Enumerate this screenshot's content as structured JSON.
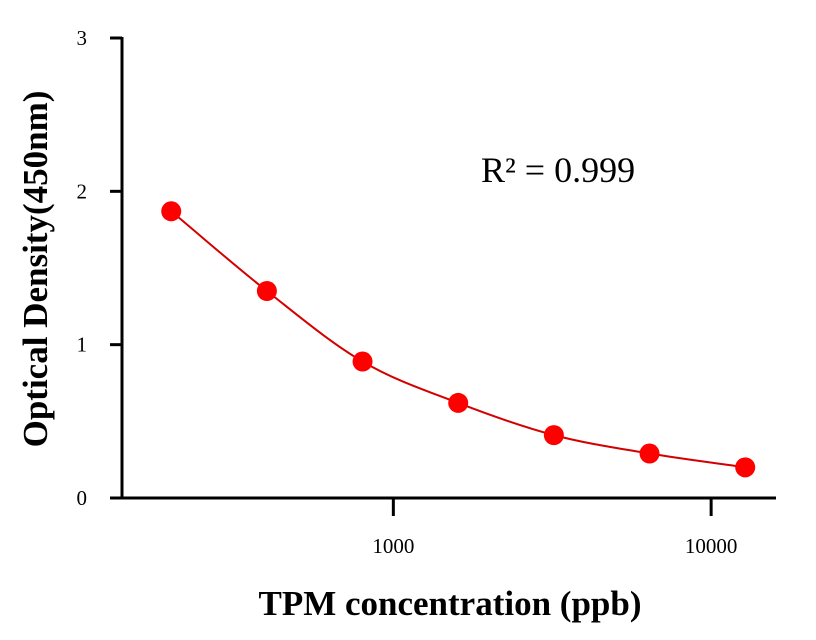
{
  "chart_data": {
    "type": "scatter",
    "title": "",
    "xlabel": "TPM concentration (ppb)",
    "ylabel": "Optical Density(450nm)",
    "x_scale": "log",
    "xlim": [
      140,
      16000
    ],
    "ylim": [
      0,
      3
    ],
    "x_ticks": [
      1000,
      10000
    ],
    "y_ticks": [
      0,
      1,
      2,
      3
    ],
    "grid": false,
    "legend": "none",
    "annotation": "R² = 0.999",
    "series": [
      {
        "x": [
          200,
          400,
          800,
          1600,
          3200,
          6400,
          12800
        ],
        "y": [
          1.87,
          1.35,
          0.89,
          0.62,
          0.41,
          0.29,
          0.2
        ],
        "marker_color": "#ff0000",
        "fit_line": true,
        "line_color": "#d40000"
      }
    ]
  }
}
